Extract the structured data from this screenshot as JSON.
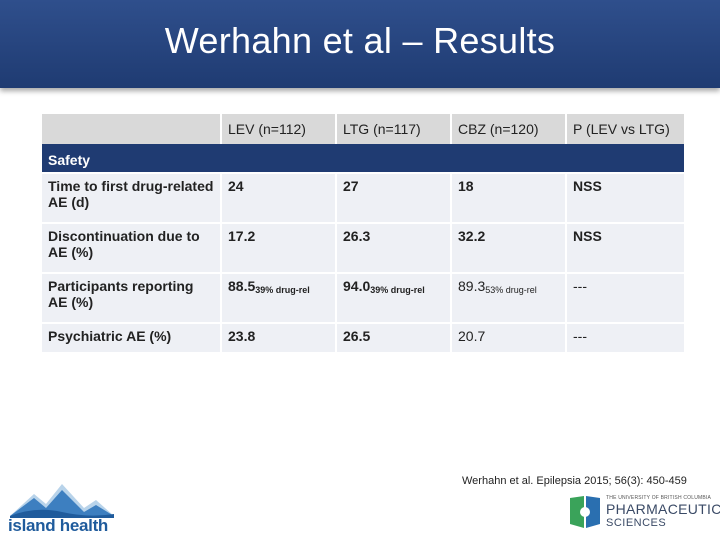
{
  "slide": {
    "title": "Werhahn et al – Results",
    "citation": "Werhahn et al. Epilepsia 2015; 56(3): 450-459"
  },
  "table": {
    "headers": [
      "",
      "LEV (n=112)",
      "LTG (n=117)",
      "CBZ (n=120)",
      "P (LEV vs LTG)"
    ],
    "section_label": "Safety",
    "rows": [
      {
        "label": "Time to first drug-related AE (d)",
        "values": [
          "24",
          "27",
          "18",
          "NSS"
        ],
        "subs": [
          "",
          "",
          "",
          ""
        ]
      },
      {
        "label": "Discontinuation due to AE (%)",
        "values": [
          "17.2",
          "26.3",
          "32.2",
          "NSS"
        ],
        "subs": [
          "",
          "",
          "",
          ""
        ]
      },
      {
        "label": "Participants reporting AE (%)",
        "values": [
          "88.5",
          "94.0",
          "89.3",
          "---"
        ],
        "subs": [
          "39% drug-rel",
          "39% drug-rel",
          "53% drug-rel",
          ""
        ]
      },
      {
        "label": "Psychiatric AE (%)",
        "values": [
          "23.8",
          "26.5",
          "20.7",
          "---"
        ],
        "subs": [
          "",
          "",
          "",
          ""
        ]
      }
    ]
  },
  "logos": {
    "island_health": "island health",
    "ubc_small": "THE UNIVERSITY OF BRITISH COLUMBIA",
    "ubc_pharm": "PHARMACEUTICAL",
    "ubc_sciences": "SCIENCES"
  },
  "colors": {
    "title_bar": "#1f3b72",
    "header_cell": "#d9d9d9",
    "data_cell": "#eef0f5",
    "island_blue": "#1f5b9c",
    "ubc_green": "#3aa35a"
  }
}
